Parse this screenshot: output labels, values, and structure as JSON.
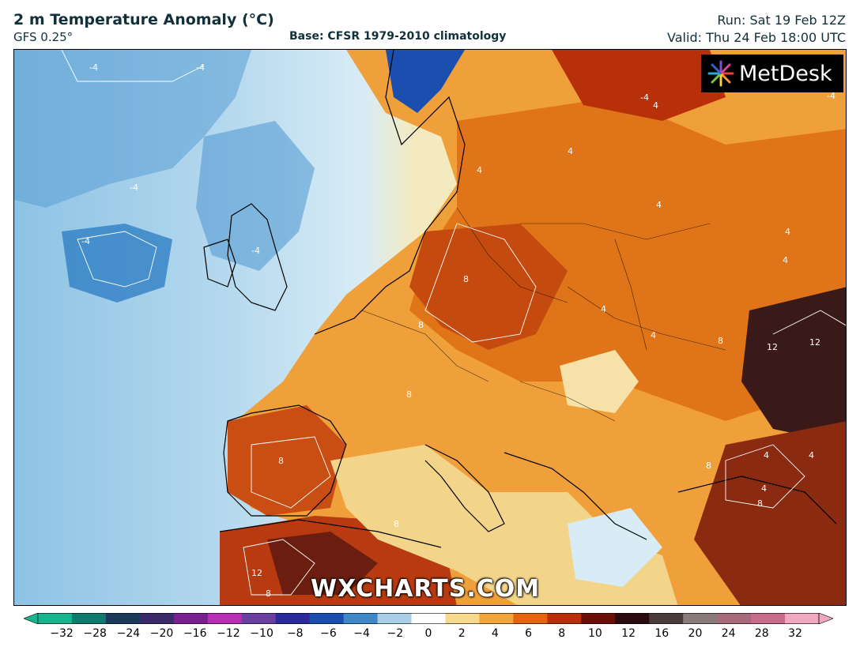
{
  "header": {
    "title": "2 m Temperature Anomaly (°C)",
    "model": "GFS 0.25°",
    "base": "Base: CFSR 1979-2010 climatology",
    "run": "Run: Sat 19 Feb 12Z",
    "valid": "Valid: Thu 24 Feb 18:00 UTC"
  },
  "logo": {
    "text": "MetDesk",
    "icon": "metdesk-pinwheel-icon"
  },
  "watermark": "WXCHARTS.COM",
  "map": {
    "contour_labels": [
      "-4",
      "-4",
      "-4",
      "-4",
      "-4",
      "-4",
      "-4",
      "4",
      "4",
      "4",
      "4",
      "4",
      "4",
      "4",
      "4",
      "4",
      "4",
      "4",
      "8",
      "8",
      "8",
      "8",
      "8",
      "8",
      "8",
      "8",
      "8",
      "12",
      "12",
      "12"
    ]
  },
  "colorbar": {
    "ticks": [
      "−32",
      "−28",
      "−24",
      "−20",
      "−16",
      "−12",
      "−10",
      "−8",
      "−6",
      "−4",
      "−2",
      "0",
      "2",
      "4",
      "6",
      "8",
      "10",
      "12",
      "16",
      "20",
      "24",
      "28",
      "32"
    ],
    "colors": [
      "#1ab38f",
      "#0f7a6e",
      "#1d3a5a",
      "#3a2a6a",
      "#7a1f8f",
      "#b62fb5",
      "#6a3fa0",
      "#2a2a9a",
      "#1a4fb0",
      "#3f88c8",
      "#a8cfe6",
      "#ffffff",
      "#f6d98c",
      "#f2a53a",
      "#e4640f",
      "#b8300a",
      "#6b0e08",
      "#2a0c10",
      "#4a3a3a",
      "#8a7a7a",
      "#a86a7a",
      "#c86a8a",
      "#f0a8c0"
    ]
  }
}
